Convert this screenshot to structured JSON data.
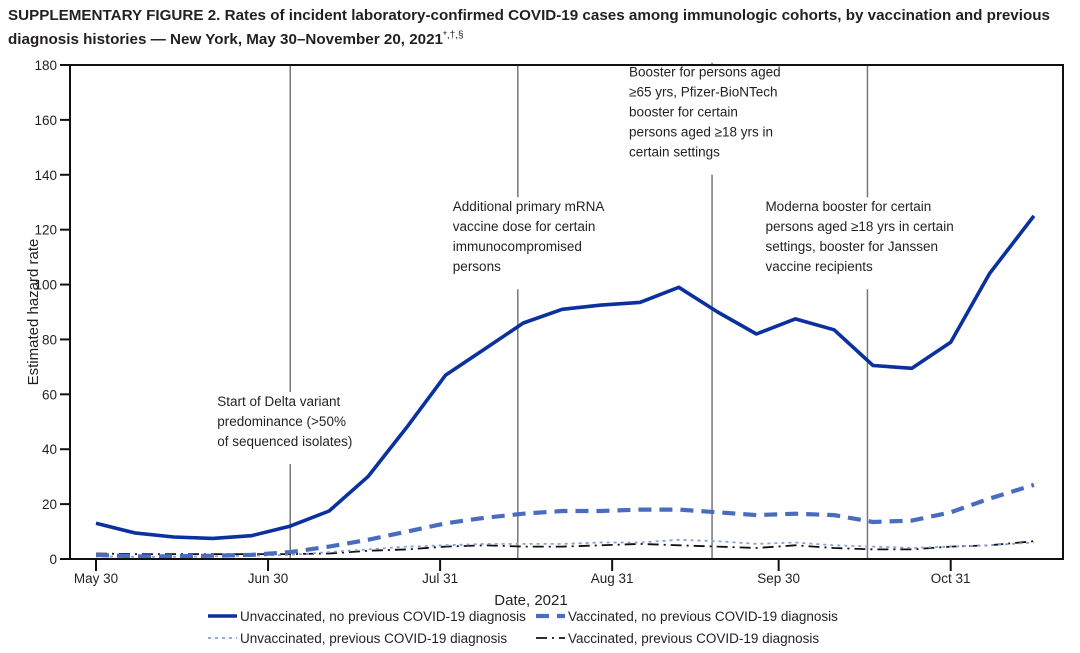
{
  "title": {
    "prefix": "SUPPLEMENTARY FIGURE 2.",
    "text": "Rates of incident laboratory-confirmed COVID-19 cases among immunologic cohorts, by vaccination and previous diagnosis histories — New York, May 30–November 20, 2021",
    "footnote_marks": "*,†,§"
  },
  "chart_data": {
    "type": "line",
    "title": "Rates of incident laboratory-confirmed COVID-19 cases among immunologic cohorts, by vaccination and previous diagnosis histories — New York, May 30–November 20, 2021",
    "xlabel": "Date, 2021",
    "ylabel": "Estimated hazard rate",
    "ylim": [
      0,
      180
    ],
    "yticks": [
      0,
      20,
      40,
      60,
      80,
      100,
      120,
      140,
      160,
      180
    ],
    "xlim_days_from_may30": [
      -2,
      175
    ],
    "xticks": [
      {
        "label": "May 30",
        "day": 0
      },
      {
        "label": "Jun 30",
        "day": 31
      },
      {
        "label": "Jul 31",
        "day": 62
      },
      {
        "label": "Aug 31",
        "day": 93
      },
      {
        "label": "Sep 30",
        "day": 123
      },
      {
        "label": "Oct 31",
        "day": 154
      }
    ],
    "x_days_from_may30": [
      0,
      7,
      14,
      21,
      28,
      35,
      42,
      49,
      56,
      63,
      70,
      77,
      84,
      91,
      98,
      105,
      112,
      119,
      126,
      133,
      140,
      147,
      154,
      161,
      169
    ],
    "series": [
      {
        "name": "Unvaccinated, no previous COVID-19 diagnosis",
        "style": "solid",
        "color": "#0b319e",
        "values": [
          13,
          9.5,
          8,
          7.5,
          8.5,
          12,
          17.5,
          30,
          48,
          67,
          76.5,
          86,
          91,
          92.5,
          93.5,
          99,
          90,
          82,
          87.5,
          83.5,
          70.5,
          69.5,
          79,
          104,
          125
        ]
      },
      {
        "name": "Vaccinated, no previous COVID-19 diagnosis",
        "style": "dashed",
        "color": "#4a6cbf",
        "values": [
          1.5,
          1,
          1,
          1.2,
          1.5,
          2.5,
          4.5,
          7,
          10,
          13,
          15,
          16.5,
          17.5,
          17.5,
          18,
          18,
          17,
          16,
          16.5,
          16,
          13.5,
          14,
          17,
          22,
          27
        ]
      },
      {
        "name": "Unvaccinated, previous COVID-19 diagnosis",
        "style": "dotted",
        "color": "#8aa0d4",
        "values": [
          1,
          0.8,
          0.8,
          1,
          1.2,
          1.5,
          2.5,
          3.5,
          4.5,
          5,
          5.5,
          5.5,
          5.5,
          6,
          6,
          7,
          6.5,
          5.5,
          6,
          5,
          4.5,
          4,
          4.5,
          5,
          6
        ]
      },
      {
        "name": "Vaccinated, previous COVID-19 diagnosis",
        "style": "dash-dot",
        "color": "#111111",
        "values": [
          2,
          1.8,
          1.8,
          1.8,
          1.8,
          1.8,
          2,
          3,
          3.5,
          4.5,
          5,
          4.5,
          4.5,
          5,
          5.5,
          5,
          4.5,
          4,
          5,
          4,
          3.5,
          3.5,
          4.5,
          5,
          6.5
        ]
      }
    ],
    "annotations": [
      {
        "day": 35,
        "lines": [
          "Start of Delta variant",
          "predominance (>50%",
          "of sequenced isolates)"
        ],
        "value_top": 55
      },
      {
        "day": 76,
        "lines": [
          "Additional primary mRNA",
          "vaccine dose for certain",
          "immunocompromised",
          "persons"
        ],
        "value_top": 126
      },
      {
        "day": 111,
        "lines": [
          "Booster for persons aged",
          "≥65 yrs, Pfizer-BioNTech",
          "booster for certain",
          "persons aged ≥18 yrs in",
          "certain settings"
        ],
        "value_top": 175
      },
      {
        "day": 139,
        "lines": [
          "Moderna booster for certain",
          "persons aged ≥18 yrs in certain",
          "settings, booster for Janssen",
          "vaccine recipients"
        ],
        "value_top": 126
      }
    ],
    "legend": {
      "placement": "bottom",
      "entries": [
        "Unvaccinated, no previous COVID-19 diagnosis",
        "Vaccinated, no previous COVID-19 diagnosis",
        "Unvaccinated, previous COVID-19 diagnosis",
        "Vaccinated, previous COVID-19 diagnosis"
      ]
    },
    "grid": false
  }
}
